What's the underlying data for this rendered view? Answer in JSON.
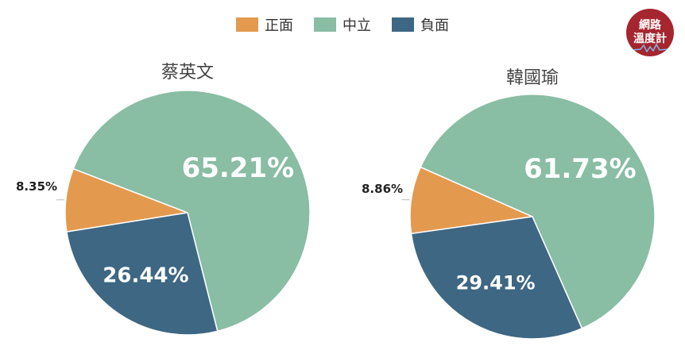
{
  "logo": {
    "line1": "網路",
    "line2": "溫度計"
  },
  "legend": [
    {
      "label": "正面",
      "color": "#e39a4f"
    },
    {
      "label": "中立",
      "color": "#89bda4"
    },
    {
      "label": "負面",
      "color": "#3d6783"
    }
  ],
  "chart_data": [
    {
      "type": "pie",
      "title": "蔡英文",
      "slices": [
        {
          "label": "正面",
          "value": 8.35,
          "value_label": "8.35%",
          "color": "#e39a4f"
        },
        {
          "label": "中立",
          "value": 65.21,
          "value_label": "65.21%",
          "color": "#89bda4"
        },
        {
          "label": "負面",
          "value": 26.44,
          "value_label": "26.44%",
          "color": "#3d6783"
        }
      ]
    },
    {
      "type": "pie",
      "title": "韓國瑜",
      "slices": [
        {
          "label": "正面",
          "value": 8.86,
          "value_label": "8.86%",
          "color": "#e39a4f"
        },
        {
          "label": "中立",
          "value": 61.73,
          "value_label": "61.73%",
          "color": "#89bda4"
        },
        {
          "label": "負面",
          "value": 29.41,
          "value_label": "29.41%",
          "color": "#3d6783"
        }
      ]
    }
  ]
}
